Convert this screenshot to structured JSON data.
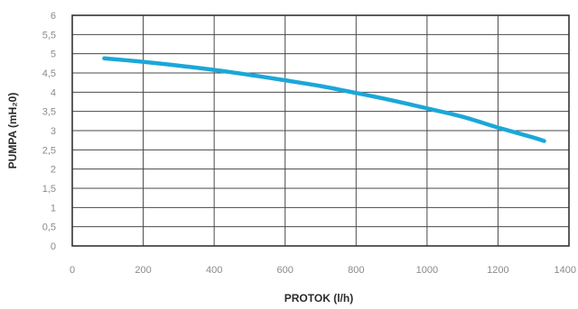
{
  "chart_data": {
    "type": "line",
    "xlabel": "PROTOK (l/h)",
    "ylabel": "PUMPA (mH₂0)",
    "xlim": [
      0,
      1400
    ],
    "ylim": [
      0,
      6
    ],
    "x_ticks": [
      "0",
      "200",
      "400",
      "600",
      "800",
      "1000",
      "1200",
      "1400"
    ],
    "y_ticks": [
      "0",
      "0,5",
      "1",
      "1,5",
      "2",
      "2,5",
      "3",
      "3,5",
      "4",
      "4,5",
      "5",
      "5,5",
      "6"
    ],
    "grid": true,
    "series": [
      {
        "color": "#1ba7d8",
        "x": [
          90,
          200,
          300,
          400,
          500,
          600,
          700,
          800,
          900,
          1000,
          1100,
          1200,
          1300,
          1330
        ],
        "y": [
          4.88,
          4.79,
          4.69,
          4.58,
          4.45,
          4.31,
          4.16,
          3.98,
          3.79,
          3.58,
          3.36,
          3.08,
          2.82,
          2.73
        ]
      }
    ]
  }
}
